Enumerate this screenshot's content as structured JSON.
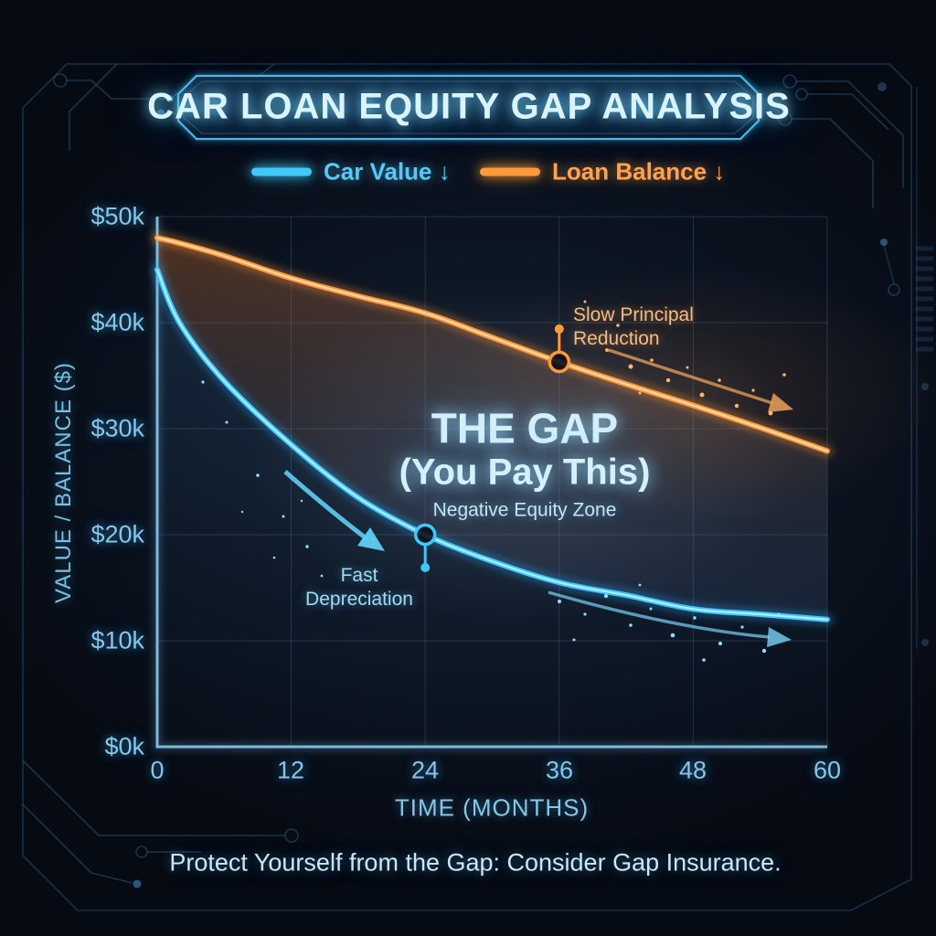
{
  "title": {
    "text": "CAR LOAN EQUITY GAP ANALYSIS"
  },
  "chart_data": {
    "type": "line",
    "title": "CAR LOAN EQUITY GAP ANALYSIS",
    "x": [
      0,
      2,
      6,
      12,
      18,
      24,
      30,
      36,
      42,
      48,
      54,
      60
    ],
    "series": [
      {
        "name": "Car Value ↓",
        "color": "#3ec9fa",
        "values": [
          45,
          40,
          34.5,
          28.5,
          23.5,
          20,
          17.5,
          15.5,
          14.3,
          13,
          12.5,
          12
        ]
      },
      {
        "name": "Loan Balance ↓",
        "color": "#ff9a3a",
        "values": [
          48,
          47.5,
          46.3,
          44.2,
          42.5,
          40.9,
          38.6,
          36.3,
          34.2,
          32.2,
          30.1,
          27.9
        ]
      }
    ],
    "xticks": [
      "0",
      "12",
      "24",
      "36",
      "48",
      "60"
    ],
    "xtick_values": [
      0,
      12,
      24,
      36,
      48,
      60
    ],
    "yticks": [
      "$0k",
      "$10k",
      "$20k",
      "$30k",
      "$40k",
      "$50k"
    ],
    "ytick_values": [
      0,
      10,
      20,
      30,
      40,
      50
    ],
    "xlabel": "TIME (MONTHS)",
    "ylabel": "VALUE / BALANCE ($)",
    "xlim": [
      0,
      60
    ],
    "ylim": [
      0,
      50
    ],
    "grid": true,
    "legend_position": "top",
    "markers": [
      {
        "series": 0,
        "x": 24,
        "y": 20,
        "stem": "down"
      },
      {
        "series": 1,
        "x": 36,
        "y": 36.3,
        "stem": "up"
      }
    ]
  },
  "annotations": {
    "loan": {
      "line1": "Slow Principal",
      "line2": "Reduction"
    },
    "value": {
      "line1": "Fast",
      "line2": "Depreciation"
    },
    "gap": {
      "line1": "THE GAP",
      "line2": "(You Pay This)",
      "line3": "Negative Equity Zone"
    }
  },
  "footer": {
    "text": "Protect Yourself from the Gap: Consider Gap Insurance."
  },
  "colors": {
    "car_value": "#3ec9fa",
    "loan_balance": "#ff9a3a",
    "accent_cyan": "#55b9e6",
    "background": "#0b1320"
  }
}
